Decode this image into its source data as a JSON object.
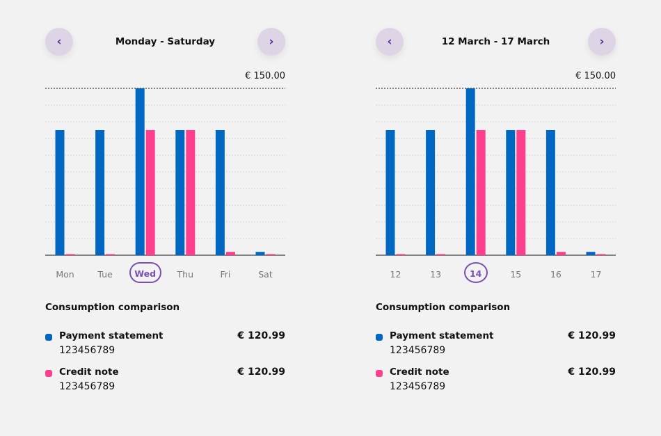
{
  "colors": {
    "payment": "#0068c3",
    "credit": "#ff3f8e",
    "accent": "#7a4fb0",
    "nav_bg": "#ddd5e6"
  },
  "chart_data": [
    {
      "type": "bar",
      "title": "Monday - Saturday",
      "ymax_label": "€ 150.00",
      "ylim": [
        0,
        150
      ],
      "grid": true,
      "categories": [
        "Mon",
        "Tue",
        "Wed",
        "Thu",
        "Fri",
        "Sat"
      ],
      "selected_index": 2,
      "series": [
        {
          "name": "Payment statement",
          "values": [
            112.5,
            112.5,
            150,
            112.5,
            112.5,
            3
          ]
        },
        {
          "name": "Credit note",
          "values": [
            1,
            1,
            112.5,
            112.5,
            3,
            1
          ]
        }
      ]
    },
    {
      "type": "bar",
      "title": "12 March - 17 March",
      "ymax_label": "€ 150.00",
      "ylim": [
        0,
        150
      ],
      "grid": true,
      "categories": [
        "12",
        "13",
        "14",
        "15",
        "16",
        "17"
      ],
      "selected_index": 2,
      "series": [
        {
          "name": "Payment statement",
          "values": [
            112.5,
            112.5,
            150,
            112.5,
            112.5,
            3
          ]
        },
        {
          "name": "Credit note",
          "values": [
            1,
            1,
            112.5,
            112.5,
            3,
            1
          ]
        }
      ]
    }
  ],
  "panels": [
    {
      "prev_icon": "‹",
      "next_icon": "›",
      "subtitle": "Consumption comparison",
      "legend": [
        {
          "name": "Payment statement",
          "number": "123456789",
          "value": "€ 120.99"
        },
        {
          "name": "Credit note",
          "number": "123456789",
          "value": "€ 120.99"
        }
      ]
    },
    {
      "prev_icon": "‹",
      "next_icon": "›",
      "subtitle": "Consumption comparison",
      "legend": [
        {
          "name": "Payment statement",
          "number": "123456789",
          "value": "€ 120.99"
        },
        {
          "name": "Credit note",
          "number": "123456789",
          "value": "€ 120.99"
        }
      ]
    }
  ]
}
